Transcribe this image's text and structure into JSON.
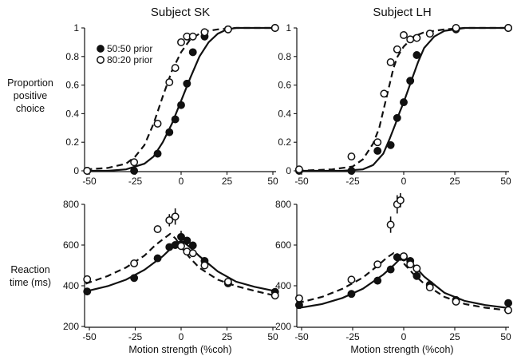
{
  "titles": [
    "Subject SK",
    "Subject LH"
  ],
  "ylabels": {
    "proportion": [
      "Proportion",
      "positive",
      "choice"
    ],
    "rt": [
      "Reaction",
      "time (ms)"
    ]
  },
  "xlabel": "Motion strength (%coh)",
  "legend": [
    {
      "label": "50:50 prior",
      "marker": "filled"
    },
    {
      "label": "80:20 prior",
      "marker": "open"
    }
  ],
  "colors": {
    "ink": "#111111",
    "background": "#ffffff"
  },
  "chart_data": [
    {
      "type": "scatter",
      "panel": "SK-choice",
      "title": "Subject SK",
      "xlim": [
        -50,
        50
      ],
      "ylim": [
        0,
        1
      ],
      "xticks": [
        -50,
        -25,
        0,
        25,
        50
      ],
      "yticks": [
        0,
        0.2,
        0.4,
        0.6,
        0.8,
        1
      ],
      "series": [
        {
          "name": "50:50 prior",
          "marker": "filled",
          "line": "solid",
          "points": [
            [
              -51.2,
              0.0
            ],
            [
              -25.6,
              0.0
            ],
            [
              -12.8,
              0.12
            ],
            [
              -6.4,
              0.27
            ],
            [
              -3.2,
              0.36
            ],
            [
              0,
              0.46
            ],
            [
              3.2,
              0.61
            ],
            [
              6.4,
              0.83
            ],
            [
              12.8,
              0.94
            ],
            [
              25.6,
              0.99
            ],
            [
              51.2,
              1.0
            ]
          ],
          "curve": [
            [
              -52,
              0.0
            ],
            [
              -40,
              0.0
            ],
            [
              -30,
              0.01
            ],
            [
              -20,
              0.05
            ],
            [
              -15,
              0.1
            ],
            [
              -10,
              0.2
            ],
            [
              -5,
              0.33
            ],
            [
              0,
              0.49
            ],
            [
              5,
              0.65
            ],
            [
              10,
              0.8
            ],
            [
              15,
              0.9
            ],
            [
              20,
              0.96
            ],
            [
              25,
              0.99
            ],
            [
              30,
              1.0
            ],
            [
              52,
              1.0
            ]
          ]
        },
        {
          "name": "80:20 prior",
          "marker": "open",
          "line": "dashed",
          "points": [
            [
              -51.2,
              0.0
            ],
            [
              -25.6,
              0.06
            ],
            [
              -12.8,
              0.33
            ],
            [
              -6.4,
              0.62
            ],
            [
              -3.2,
              0.72
            ],
            [
              0,
              0.9
            ],
            [
              3.2,
              0.94
            ],
            [
              6.4,
              0.94
            ],
            [
              12.8,
              0.97
            ],
            [
              25.6,
              0.99
            ],
            [
              51.2,
              1.0
            ]
          ],
          "curve": [
            [
              -52,
              0.01
            ],
            [
              -40,
              0.02
            ],
            [
              -30,
              0.05
            ],
            [
              -25,
              0.1
            ],
            [
              -20,
              0.18
            ],
            [
              -15,
              0.33
            ],
            [
              -10,
              0.52
            ],
            [
              -5,
              0.7
            ],
            [
              0,
              0.83
            ],
            [
              5,
              0.92
            ],
            [
              10,
              0.96
            ],
            [
              15,
              0.98
            ],
            [
              20,
              0.99
            ],
            [
              30,
              1.0
            ],
            [
              52,
              1.0
            ]
          ]
        }
      ]
    },
    {
      "type": "scatter",
      "panel": "LH-choice",
      "title": "Subject LH",
      "xlim": [
        -50,
        50
      ],
      "ylim": [
        0,
        1
      ],
      "xticks": [
        -50,
        -25,
        0,
        25,
        50
      ],
      "yticks": [
        0,
        0.2,
        0.4,
        0.6,
        0.8,
        1
      ],
      "series": [
        {
          "name": "50:50 prior",
          "marker": "filled",
          "line": "solid",
          "points": [
            [
              -51.2,
              0.0
            ],
            [
              -25.6,
              0.0
            ],
            [
              -12.8,
              0.14
            ],
            [
              -6.4,
              0.18
            ],
            [
              -3.2,
              0.37
            ],
            [
              0,
              0.48
            ],
            [
              3.2,
              0.63
            ],
            [
              6.4,
              0.81
            ],
            [
              12.8,
              0.96
            ],
            [
              25.6,
              0.99
            ],
            [
              51.2,
              1.0
            ]
          ],
          "curve": [
            [
              -52,
              0.0
            ],
            [
              -30,
              0.0
            ],
            [
              -20,
              0.01
            ],
            [
              -15,
              0.04
            ],
            [
              -10,
              0.12
            ],
            [
              -7,
              0.22
            ],
            [
              -4,
              0.33
            ],
            [
              -2,
              0.41
            ],
            [
              0,
              0.48
            ],
            [
              2,
              0.56
            ],
            [
              4,
              0.64
            ],
            [
              7,
              0.76
            ],
            [
              10,
              0.86
            ],
            [
              15,
              0.94
            ],
            [
              20,
              0.98
            ],
            [
              30,
              1.0
            ],
            [
              52,
              1.0
            ]
          ]
        },
        {
          "name": "80:20 prior",
          "marker": "open",
          "line": "dashed",
          "points": [
            [
              -51.2,
              0.01
            ],
            [
              -25.6,
              0.1
            ],
            [
              -12.8,
              0.2
            ],
            [
              -9.6,
              0.54
            ],
            [
              -6.4,
              0.76
            ],
            [
              -3.2,
              0.85
            ],
            [
              0,
              0.95
            ],
            [
              3.2,
              0.92
            ],
            [
              6.4,
              0.93
            ],
            [
              12.8,
              0.96
            ],
            [
              25.6,
              1.0
            ],
            [
              51.2,
              1.0
            ]
          ],
          "curve": [
            [
              -52,
              0.0
            ],
            [
              -35,
              0.01
            ],
            [
              -25,
              0.03
            ],
            [
              -20,
              0.08
            ],
            [
              -15,
              0.19
            ],
            [
              -12,
              0.3
            ],
            [
              -10,
              0.42
            ],
            [
              -7,
              0.6
            ],
            [
              -5,
              0.72
            ],
            [
              -3,
              0.8
            ],
            [
              0,
              0.87
            ],
            [
              5,
              0.94
            ],
            [
              10,
              0.97
            ],
            [
              20,
              0.99
            ],
            [
              30,
              1.0
            ],
            [
              52,
              1.0
            ]
          ]
        }
      ]
    },
    {
      "type": "scatter",
      "panel": "SK-rt",
      "xlim": [
        -50,
        50
      ],
      "ylim": [
        200,
        800
      ],
      "xticks": [
        -50,
        -25,
        0,
        25,
        50
      ],
      "yticks": [
        200,
        400,
        600,
        800
      ],
      "series": [
        {
          "name": "50:50 prior",
          "marker": "filled",
          "line": "solid",
          "points": [
            [
              -51.2,
              372,
              0
            ],
            [
              -25.6,
              438,
              0
            ],
            [
              -12.8,
              535,
              0
            ],
            [
              -6.4,
              590,
              0
            ],
            [
              -3.2,
              600,
              0
            ],
            [
              0,
              640,
              30
            ],
            [
              3.2,
              622,
              0
            ],
            [
              6.4,
              598,
              0
            ],
            [
              12.8,
              522,
              0
            ],
            [
              25.6,
              412,
              0
            ],
            [
              51.2,
              370,
              0
            ]
          ],
          "curve": [
            [
              -52,
              372
            ],
            [
              -40,
              398
            ],
            [
              -30,
              430
            ],
            [
              -20,
              478
            ],
            [
              -10,
              545
            ],
            [
              -5,
              588
            ],
            [
              -2,
              612
            ],
            [
              0,
              620
            ],
            [
              2,
              610
            ],
            [
              5,
              588
            ],
            [
              10,
              545
            ],
            [
              20,
              470
            ],
            [
              30,
              420
            ],
            [
              40,
              395
            ],
            [
              52,
              372
            ]
          ]
        },
        {
          "name": "80:20 prior",
          "marker": "open",
          "line": "dashed",
          "points": [
            [
              -51.2,
              432,
              0
            ],
            [
              -25.6,
              510,
              0
            ],
            [
              -12.8,
              678,
              0
            ],
            [
              -6.4,
              722,
              30
            ],
            [
              -3.2,
              740,
              40
            ],
            [
              0,
              595,
              0
            ],
            [
              3.2,
              568,
              0
            ],
            [
              6.4,
              560,
              0
            ],
            [
              12.8,
              500,
              0
            ],
            [
              25.6,
              420,
              0
            ],
            [
              51.2,
              352,
              0
            ]
          ],
          "curve": [
            [
              -52,
              410
            ],
            [
              -40,
              448
            ],
            [
              -30,
              490
            ],
            [
              -20,
              548
            ],
            [
              -14,
              600
            ],
            [
              -10,
              628
            ],
            [
              -6,
              655
            ],
            [
              -3,
              632
            ],
            [
              0,
              590
            ],
            [
              5,
              535
            ],
            [
              10,
              488
            ],
            [
              20,
              430
            ],
            [
              30,
              398
            ],
            [
              40,
              375
            ],
            [
              52,
              350
            ]
          ]
        }
      ]
    },
    {
      "type": "scatter",
      "panel": "LH-rt",
      "xlim": [
        -50,
        50
      ],
      "ylim": [
        200,
        800
      ],
      "xticks": [
        -50,
        -25,
        0,
        25,
        50
      ],
      "yticks": [
        200,
        400,
        600,
        800
      ],
      "series": [
        {
          "name": "50:50 prior",
          "marker": "filled",
          "line": "solid",
          "points": [
            [
              -51.2,
              305,
              0
            ],
            [
              -25.6,
              360,
              0
            ],
            [
              -12.8,
              425,
              0
            ],
            [
              -6.4,
              480,
              0
            ],
            [
              -3.2,
              540,
              20
            ],
            [
              0,
              540,
              20
            ],
            [
              3.2,
              522,
              0
            ],
            [
              6.4,
              448,
              0
            ],
            [
              12.8,
              405,
              0
            ],
            [
              25.6,
              330,
              0
            ],
            [
              51.2,
              315,
              0
            ]
          ],
          "curve": [
            [
              -52,
              290
            ],
            [
              -40,
              310
            ],
            [
              -30,
              340
            ],
            [
              -20,
              385
            ],
            [
              -10,
              455
            ],
            [
              -5,
              500
            ],
            [
              -2,
              530
            ],
            [
              0,
              540
            ],
            [
              2,
              530
            ],
            [
              5,
              500
            ],
            [
              10,
              445
            ],
            [
              20,
              365
            ],
            [
              30,
              325
            ],
            [
              40,
              305
            ],
            [
              52,
              290
            ]
          ]
        },
        {
          "name": "80:20 prior",
          "marker": "open",
          "line": "dashed",
          "points": [
            [
              -51.2,
              338,
              0
            ],
            [
              -25.6,
              430,
              0
            ],
            [
              -12.8,
              505,
              0
            ],
            [
              -6.4,
              700,
              40
            ],
            [
              -3.2,
              800,
              45
            ],
            [
              -1.6,
              820,
              35
            ],
            [
              0,
              545,
              0
            ],
            [
              3.2,
              505,
              0
            ],
            [
              6.4,
              485,
              0
            ],
            [
              12.8,
              392,
              0
            ],
            [
              25.6,
              322,
              0
            ],
            [
              51.2,
              280,
              0
            ]
          ],
          "curve": [
            [
              -52,
              315
            ],
            [
              -40,
              345
            ],
            [
              -30,
              385
            ],
            [
              -20,
              440
            ],
            [
              -12,
              505
            ],
            [
              -8,
              540
            ],
            [
              -5,
              560
            ],
            [
              -3,
              545
            ],
            [
              0,
              510
            ],
            [
              5,
              455
            ],
            [
              10,
              410
            ],
            [
              20,
              345
            ],
            [
              30,
              310
            ],
            [
              40,
              292
            ],
            [
              52,
              278
            ]
          ]
        }
      ]
    }
  ]
}
